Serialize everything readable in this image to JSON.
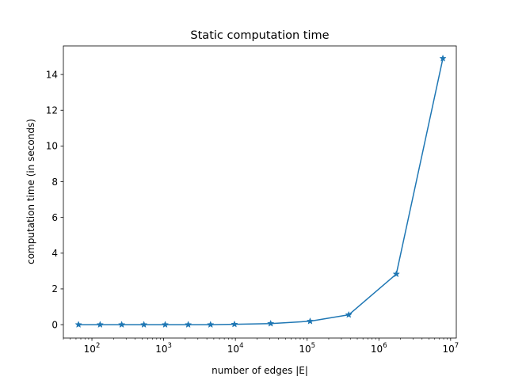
{
  "chart_data": {
    "type": "line",
    "title": "Static computation time",
    "xlabel": "number of edges |E|",
    "ylabel": "computation time (in seconds)",
    "xscale": "log",
    "xlim": [
      40,
      12000000
    ],
    "ylim": [
      -0.75,
      15.6
    ],
    "xticks": [
      {
        "value": 100,
        "base": "10",
        "exp": "2"
      },
      {
        "value": 1000,
        "base": "10",
        "exp": "3"
      },
      {
        "value": 10000,
        "base": "10",
        "exp": "4"
      },
      {
        "value": 100000,
        "base": "10",
        "exp": "5"
      },
      {
        "value": 1000000,
        "base": "10",
        "exp": "6"
      },
      {
        "value": 10000000,
        "base": "10",
        "exp": "7"
      }
    ],
    "yticks": [
      0,
      2,
      4,
      6,
      8,
      10,
      12,
      14
    ],
    "grid": false,
    "series": [
      {
        "color": "#1f77b4",
        "marker": "star",
        "x": [
          65,
          130,
          260,
          530,
          1050,
          2200,
          4500,
          9700,
          31000,
          110000,
          380000,
          1750000,
          7800000
        ],
        "y": [
          0.0,
          0.0,
          0.0,
          0.0,
          0.0,
          0.0,
          0.0,
          0.02,
          0.06,
          0.19,
          0.55,
          2.83,
          14.9
        ]
      }
    ]
  }
}
